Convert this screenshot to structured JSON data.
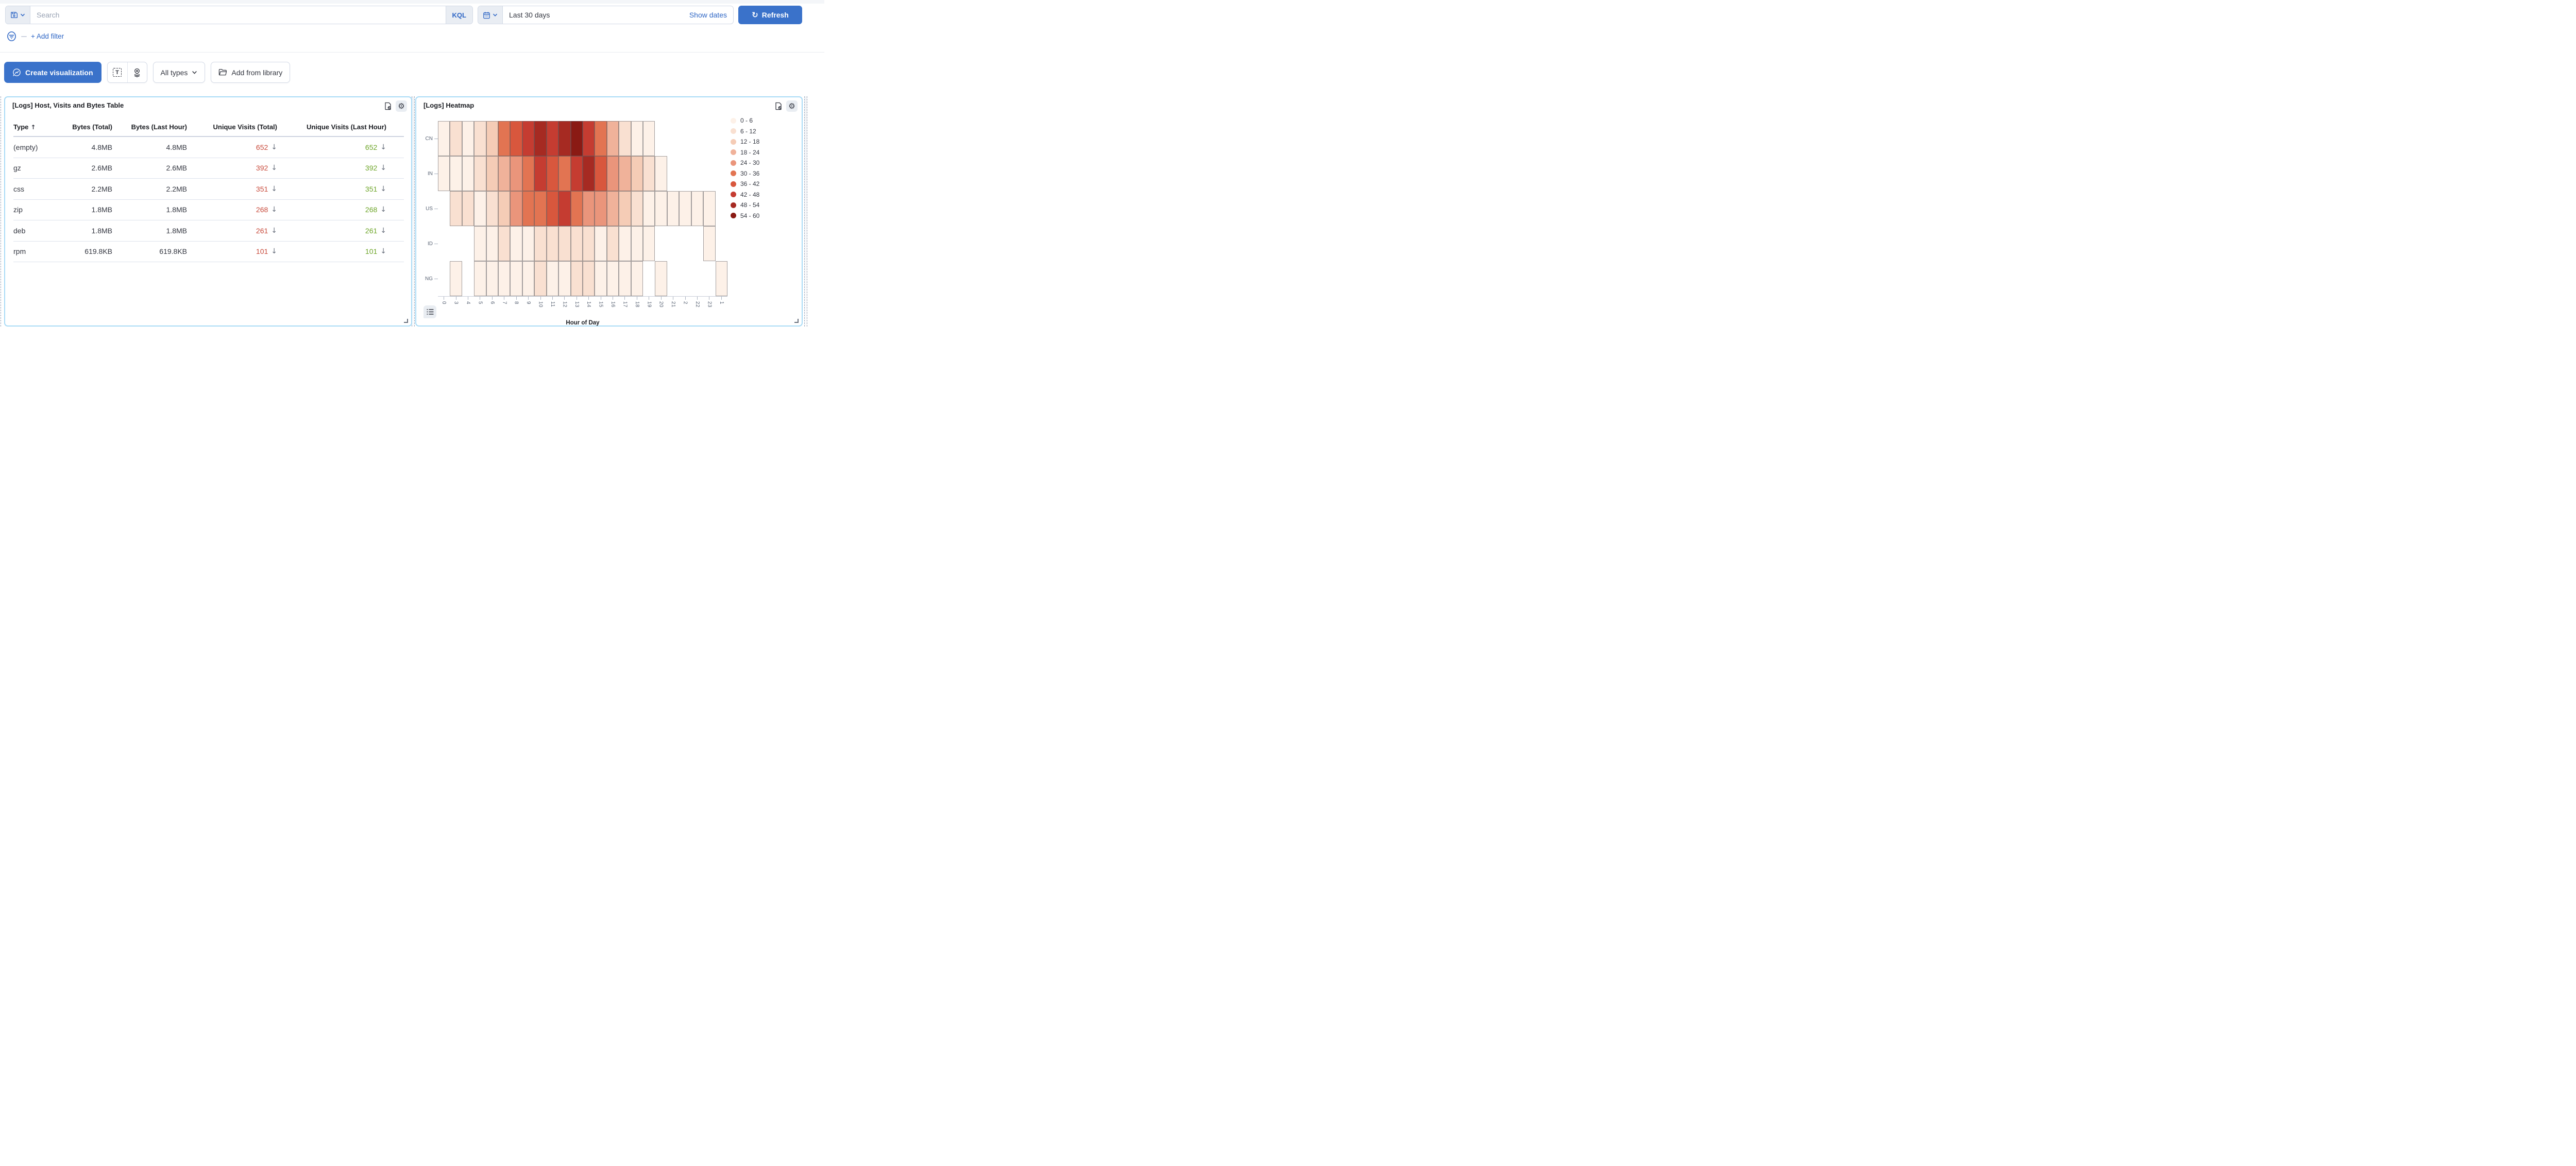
{
  "query_bar": {
    "search_placeholder": "Search",
    "kql_label": "KQL",
    "time_range": "Last 30 days",
    "show_dates_label": "Show dates",
    "refresh_label": "Refresh"
  },
  "filter_bar": {
    "add_filter_label": "+ Add filter"
  },
  "toolbar": {
    "create_viz_label": "Create visualization",
    "all_types_label": "All types",
    "add_from_library_label": "Add from library"
  },
  "table_panel": {
    "title": "[Logs] Host, Visits and Bytes Table",
    "columns": [
      "Type",
      "Bytes (Total)",
      "Bytes (Last Hour)",
      "Unique Visits (Total)",
      "Unique Visits (Last Hour)"
    ],
    "sort_column": "Type",
    "rows": [
      {
        "type": "(empty)",
        "bytes_total": "4.8MB",
        "bytes_last_hour": "4.8MB",
        "visits_total": "652",
        "visits_last_hour": "652"
      },
      {
        "type": "gz",
        "bytes_total": "2.6MB",
        "bytes_last_hour": "2.6MB",
        "visits_total": "392",
        "visits_last_hour": "392"
      },
      {
        "type": "css",
        "bytes_total": "2.2MB",
        "bytes_last_hour": "2.2MB",
        "visits_total": "351",
        "visits_last_hour": "351"
      },
      {
        "type": "zip",
        "bytes_total": "1.8MB",
        "bytes_last_hour": "1.8MB",
        "visits_total": "268",
        "visits_last_hour": "268"
      },
      {
        "type": "deb",
        "bytes_total": "1.8MB",
        "bytes_last_hour": "1.8MB",
        "visits_total": "261",
        "visits_last_hour": "261"
      },
      {
        "type": "rpm",
        "bytes_total": "619.8KB",
        "bytes_last_hour": "619.8KB",
        "visits_total": "101",
        "visits_last_hour": "101"
      }
    ]
  },
  "heatmap_panel": {
    "title": "[Logs] Heatmap"
  },
  "chart_data": [
    {
      "type": "heatmap",
      "title": "[Logs] Heatmap",
      "xlabel": "Hour of Day",
      "x_categories": [
        "0",
        "3",
        "4",
        "5",
        "6",
        "7",
        "8",
        "9",
        "10",
        "11",
        "12",
        "13",
        "14",
        "15",
        "16",
        "17",
        "18",
        "19",
        "20",
        "21",
        "2",
        "22",
        "23",
        "1"
      ],
      "y_categories": [
        "CN",
        "IN",
        "US",
        "ID",
        "NG"
      ],
      "legend_bins": [
        {
          "range": "0 - 6",
          "color": "#fdf1e8"
        },
        {
          "range": "6 - 12",
          "color": "#f9e0d1"
        },
        {
          "range": "12 - 18",
          "color": "#f5ccb6"
        },
        {
          "range": "18 - 24",
          "color": "#f0b29a"
        },
        {
          "range": "24 - 30",
          "color": "#ea957b"
        },
        {
          "range": "30 - 36",
          "color": "#e27452"
        },
        {
          "range": "36 - 42",
          "color": "#d8573d"
        },
        {
          "range": "42 - 48",
          "color": "#c53c31"
        },
        {
          "range": "48 - 54",
          "color": "#a62a22"
        },
        {
          "range": "54 - 60",
          "color": "#8a1a14"
        }
      ],
      "matrix_levels": [
        [
          0,
          1,
          0,
          1,
          2,
          5,
          6,
          7,
          8,
          7,
          8,
          9,
          7,
          5,
          3,
          1,
          0,
          0,
          null,
          null,
          null,
          null,
          null,
          null
        ],
        [
          0,
          0,
          0,
          1,
          2,
          3,
          4,
          5,
          7,
          6,
          5,
          7,
          8,
          6,
          4,
          3,
          2,
          1,
          0,
          null,
          null,
          null,
          null,
          null
        ],
        [
          null,
          1,
          1,
          0,
          1,
          2,
          4,
          5,
          5,
          6,
          7,
          5,
          4,
          4,
          3,
          2,
          1,
          0,
          0,
          0,
          0,
          0,
          0,
          null
        ],
        [
          null,
          null,
          null,
          0,
          0,
          1,
          0,
          0,
          1,
          1,
          1,
          1,
          1,
          0,
          1,
          0,
          0,
          0,
          null,
          null,
          null,
          null,
          0,
          null
        ],
        [
          null,
          0,
          null,
          0,
          0,
          0,
          0,
          0,
          1,
          0,
          0,
          1,
          1,
          0,
          0,
          0,
          0,
          null,
          0,
          null,
          null,
          null,
          null,
          0
        ]
      ]
    },
    {
      "type": "table",
      "title": "[Logs] Host, Visits and Bytes Table",
      "columns": [
        "Type",
        "Bytes (Total)",
        "Bytes (Last Hour)",
        "Unique Visits (Total)",
        "Unique Visits (Last Hour)"
      ],
      "rows": [
        [
          "(empty)",
          "4.8MB",
          "4.8MB",
          652,
          652
        ],
        [
          "gz",
          "2.6MB",
          "2.6MB",
          392,
          392
        ],
        [
          "css",
          "2.2MB",
          "2.2MB",
          351,
          351
        ],
        [
          "zip",
          "1.8MB",
          "1.8MB",
          268,
          268
        ],
        [
          "deb",
          "1.8MB",
          "1.8MB",
          261,
          261
        ],
        [
          "rpm",
          "619.8KB",
          "619.8KB",
          101,
          101
        ]
      ]
    }
  ],
  "colors": {
    "primary_blue": "#3a72ca",
    "link_blue": "#2e66c5",
    "panel_border": "#a9dbf6",
    "value_red": "#c84a3b",
    "value_green": "#6ca427",
    "text": "#343741",
    "muted": "#69707d"
  }
}
